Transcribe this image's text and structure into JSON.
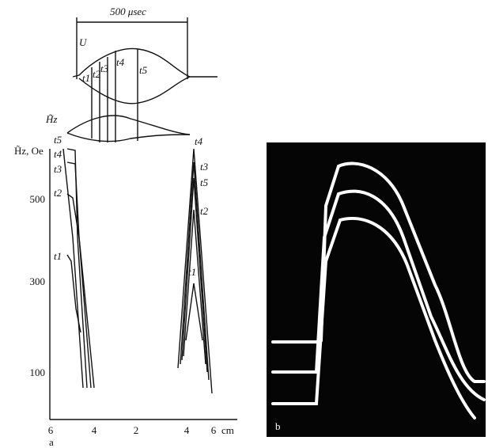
{
  "figure_a": {
    "top_panel": {
      "duration_label": "500 μsec",
      "signal_label": "U",
      "field_label": "H̃z",
      "time_labels": [
        "t1",
        "t2",
        "t3",
        "t4",
        "t5"
      ]
    },
    "plot": {
      "y_axis_label": "H̃z, Oe",
      "y_tick_labels": [
        "500",
        "300",
        "100"
      ],
      "x_tick_labels": [
        "6",
        "4",
        "2",
        "4",
        "6"
      ],
      "x_unit": "cm",
      "left_curve_labels": [
        "t5",
        "t4",
        "t3",
        "t2",
        "t1"
      ],
      "right_curve_labels": [
        "t4",
        "t3",
        "t5",
        "t2",
        "t1"
      ]
    },
    "panel_label": "a"
  },
  "figure_b": {
    "panel_label": "b"
  }
}
